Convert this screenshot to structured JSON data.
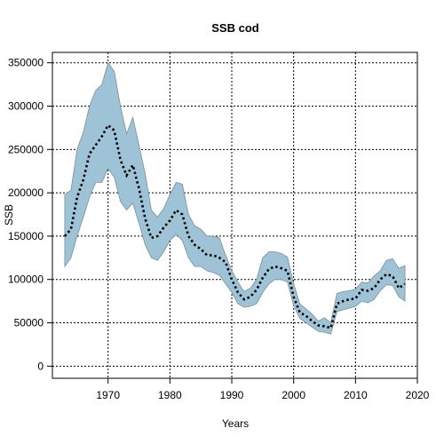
{
  "chart_data": {
    "type": "line",
    "title": "SSB cod",
    "xlabel": "Years",
    "ylabel": "SSB",
    "xlim": [
      1961,
      2020
    ],
    "ylim": [
      -14000,
      362000
    ],
    "x_ticks": [
      1970,
      1980,
      1990,
      2000,
      2010,
      2020
    ],
    "y_ticks": [
      0,
      50000,
      100000,
      150000,
      200000,
      250000,
      300000,
      350000
    ],
    "grid": true,
    "colors": {
      "band": "#9ec3d6",
      "band_edge": "#7a8f99",
      "line": "#000000"
    },
    "series": [
      {
        "role": "estimate",
        "line_style": "dotted",
        "x": [
          1963,
          1964,
          1965,
          1966,
          1967,
          1968,
          1969,
          1970,
          1971,
          1972,
          1973,
          1974,
          1975,
          1976,
          1977,
          1978,
          1979,
          1980,
          1981,
          1982,
          1983,
          1984,
          1985,
          1986,
          1987,
          1988,
          1989,
          1990,
          1991,
          1992,
          1993,
          1994,
          1995,
          1996,
          1997,
          1998,
          1999,
          2000,
          2001,
          2002,
          2003,
          2004,
          2005,
          2006,
          2007,
          2008,
          2009,
          2010,
          2011,
          2012,
          2013,
          2014,
          2015,
          2016,
          2017,
          2018
        ],
        "y": [
          150000,
          158000,
          195000,
          215000,
          245000,
          255000,
          265000,
          278000,
          272000,
          238000,
          220000,
          232000,
          205000,
          170000,
          148000,
          150000,
          160000,
          168000,
          180000,
          175000,
          150000,
          140000,
          135000,
          128000,
          128000,
          125000,
          120000,
          100000,
          85000,
          77000,
          80000,
          88000,
          102000,
          112000,
          115000,
          113000,
          110000,
          80000,
          62000,
          58000,
          52000,
          47000,
          46000,
          44000,
          72000,
          75000,
          77000,
          78000,
          88000,
          87000,
          90000,
          100000,
          106000,
          104000,
          90000,
          95000
        ]
      },
      {
        "role": "upper",
        "x": [
          1963,
          1964,
          1965,
          1966,
          1967,
          1968,
          1969,
          1970,
          1971,
          1972,
          1973,
          1974,
          1975,
          1976,
          1977,
          1978,
          1979,
          1980,
          1981,
          1982,
          1983,
          1984,
          1985,
          1986,
          1987,
          1988,
          1989,
          1990,
          1991,
          1992,
          1993,
          1994,
          1995,
          1996,
          1997,
          1998,
          1999,
          2000,
          2001,
          2002,
          2003,
          2004,
          2005,
          2006,
          2007,
          2008,
          2009,
          2010,
          2011,
          2012,
          2013,
          2014,
          2015,
          2016,
          2017,
          2018
        ],
        "y": [
          198000,
          203000,
          250000,
          270000,
          300000,
          318000,
          325000,
          350000,
          340000,
          300000,
          268000,
          287000,
          255000,
          222000,
          180000,
          172000,
          182000,
          198000,
          212000,
          210000,
          175000,
          162000,
          158000,
          150000,
          150000,
          148000,
          128000,
          110000,
          97000,
          86000,
          90000,
          100000,
          125000,
          132000,
          132000,
          130000,
          126000,
          95000,
          72000,
          66000,
          60000,
          52000,
          56000,
          50000,
          84000,
          86000,
          87000,
          89000,
          97000,
          96000,
          104000,
          110000,
          122000,
          124000,
          113000,
          116000
        ]
      },
      {
        "role": "lower",
        "x": [
          1963,
          1964,
          1965,
          1966,
          1967,
          1968,
          1969,
          1970,
          1971,
          1972,
          1973,
          1974,
          1975,
          1976,
          1977,
          1978,
          1979,
          1980,
          1981,
          1982,
          1983,
          1984,
          1985,
          1986,
          1987,
          1988,
          1989,
          1990,
          1991,
          1992,
          1993,
          1994,
          1995,
          1996,
          1997,
          1998,
          1999,
          2000,
          2001,
          2002,
          2003,
          2004,
          2005,
          2006,
          2007,
          2008,
          2009,
          2010,
          2011,
          2012,
          2013,
          2014,
          2015,
          2016,
          2017,
          2018
        ],
        "y": [
          115000,
          125000,
          150000,
          172000,
          195000,
          212000,
          212000,
          228000,
          218000,
          190000,
          180000,
          188000,
          165000,
          140000,
          125000,
          122000,
          132000,
          145000,
          152000,
          145000,
          125000,
          115000,
          115000,
          110000,
          108000,
          105000,
          95000,
          85000,
          72000,
          68000,
          69000,
          72000,
          85000,
          95000,
          100000,
          100000,
          97000,
          70000,
          55000,
          50000,
          45000,
          40000,
          39000,
          37000,
          63000,
          65000,
          67000,
          69000,
          75000,
          73000,
          77000,
          87000,
          94000,
          93000,
          80000,
          75000
        ]
      }
    ]
  }
}
